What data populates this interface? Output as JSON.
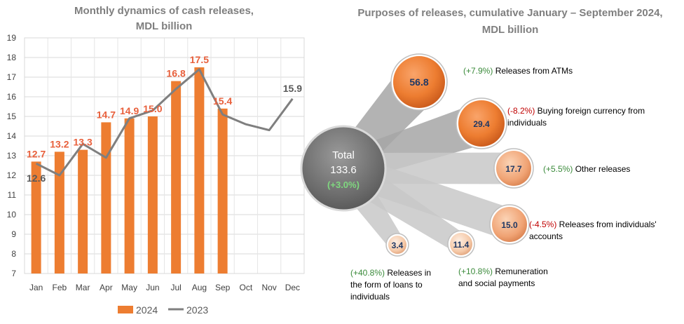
{
  "chart_data": [
    {
      "type": "bar",
      "title_lines": [
        "Monthly dynamics of cash releases,",
        "MDL billion"
      ],
      "categories": [
        "Jan",
        "Feb",
        "Mar",
        "Apr",
        "May",
        "Jun",
        "Jul",
        "Aug",
        "Sep",
        "Oct",
        "Nov",
        "Dec"
      ],
      "ylim": [
        7,
        19
      ],
      "yticks": [
        7,
        8,
        9,
        10,
        11,
        12,
        13,
        14,
        15,
        16,
        17,
        18,
        19
      ],
      "grid": true,
      "legend_position": "bottom",
      "series": [
        {
          "name": "2024",
          "kind": "bar",
          "color": "#ed7d31",
          "values": [
            12.7,
            13.2,
            13.3,
            14.7,
            14.9,
            15.0,
            16.8,
            17.5,
            15.4,
            null,
            null,
            null
          ],
          "labels": [
            "12.7",
            "13.2",
            "13.3",
            "14.7",
            "14.9",
            "15.0",
            "16.8",
            "17.5",
            "15.4",
            "",
            "",
            ""
          ]
        },
        {
          "name": "2023",
          "kind": "line",
          "color": "#7f7f7f",
          "values": [
            12.6,
            12.0,
            13.6,
            12.9,
            14.9,
            15.3,
            16.4,
            17.4,
            15.1,
            14.6,
            14.3,
            15.9
          ]
        }
      ],
      "line_annotations": [
        {
          "index": 0,
          "text": "12.6"
        },
        {
          "index": 11,
          "text": "15.9"
        }
      ]
    },
    {
      "type": "bubble",
      "title_lines": [
        "Purposes of releases, cumulative January – September 2024,",
        "MDL billion"
      ],
      "total": {
        "label": "Total",
        "value": "133.6",
        "change": "(+3.0%)"
      },
      "items": [
        {
          "value": "56.8",
          "change": "(+7.9%)",
          "sign": "pos",
          "label_lines": [
            "Releases from ATMs"
          ]
        },
        {
          "value": "29.4",
          "change": "(-8.2%)",
          "sign": "neg",
          "label_lines": [
            "Buying foreign currency from",
            "individuals"
          ]
        },
        {
          "value": "17.7",
          "change": "(+5.5%)",
          "sign": "pos",
          "label_lines": [
            "Other releases"
          ]
        },
        {
          "value": "15.0",
          "change": "(-4.5%)",
          "sign": "neg",
          "label_lines": [
            "Releases from individuals'",
            "accounts"
          ]
        },
        {
          "value": "11.4",
          "change": "(+10.8%)",
          "sign": "pos",
          "label_lines": [
            "Remuneration",
            "and social payments"
          ]
        },
        {
          "value": "3.4",
          "change": "(+40.8%)",
          "sign": "pos",
          "label_lines": [
            "Releases in",
            "the form of loans to",
            "individuals"
          ]
        }
      ]
    }
  ]
}
